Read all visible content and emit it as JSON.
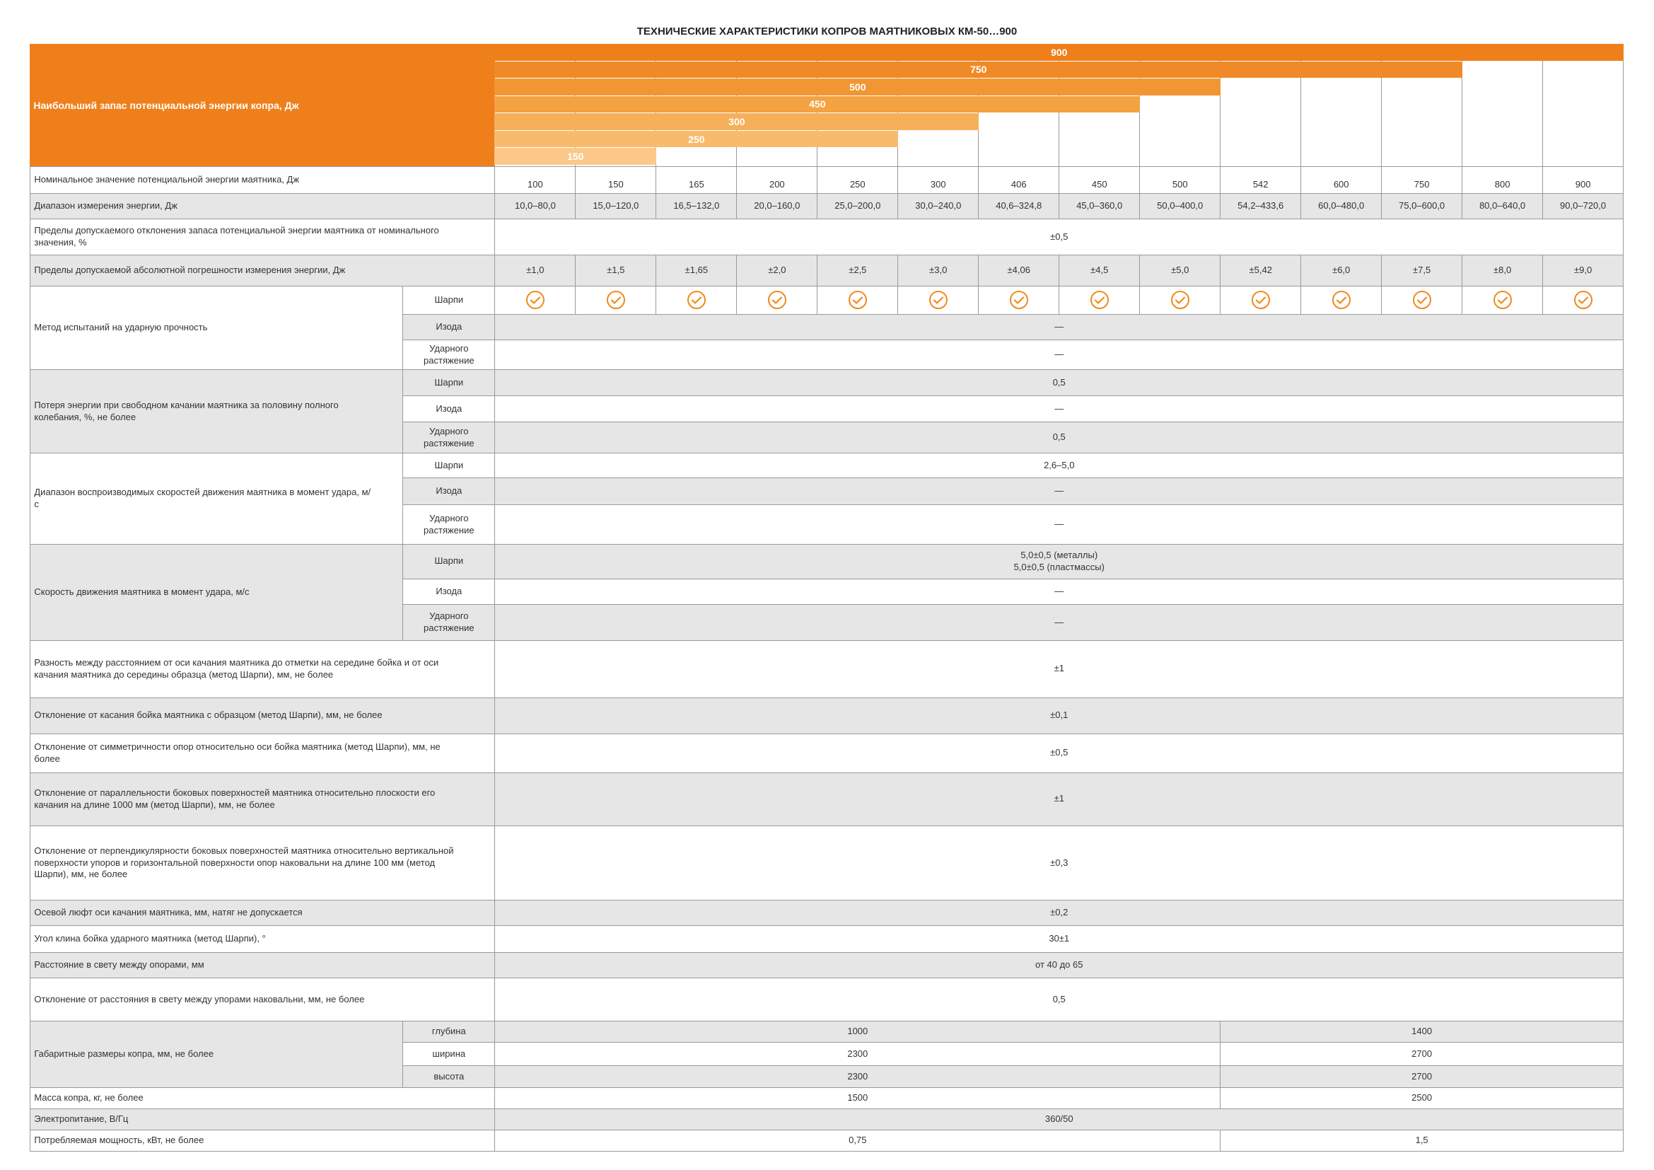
{
  "title": "ТЕХНИЧЕСКИЕ ХАРАКТЕРИСТИКИ КОПРОВ МАЯТНИКОВЫХ КМ-50…900",
  "header": {
    "label": "Наибольший запас потенциальной энергии копра, Дж",
    "bars": [
      "900",
      "750",
      "500",
      "450",
      "300",
      "250",
      "150"
    ]
  },
  "rows": [
    {
      "label": "Номинальное значение потенциальной энергии маятника, Дж",
      "values": [
        "100",
        "150",
        "165",
        "200",
        "250",
        "300",
        "406",
        "450",
        "500",
        "542",
        "600",
        "750",
        "800",
        "900"
      ]
    },
    {
      "label": "Диапазон измерения энергии, Дж",
      "values": [
        "10,0–80,0",
        "15,0–120,0",
        "16,5–132,0",
        "20,0–160,0",
        "25,0–200,0",
        "30,0–240,0",
        "40,6–324,8",
        "45,0–360,0",
        "50,0–400,0",
        "54,2–433,6",
        "60,0–480,0",
        "75,0–600,0",
        "80,0–640,0",
        "90,0–720,0"
      ]
    },
    {
      "label": "Пределы допускаемого отклонения запаса потенциальной энергии маятника от номинального значения, %",
      "value": "±0,5"
    },
    {
      "label": "Пределы допускаемой абсолютной погрешности измерения энергии, Дж",
      "values": [
        "±1,0",
        "±1,5",
        "±1,65",
        "±2,0",
        "±2,5",
        "±3,0",
        "±4,06",
        "±4,5",
        "±5,0",
        "±5,42",
        "±6,0",
        "±7,5",
        "±8,0",
        "±9,0"
      ]
    },
    {
      "label": "Метод испытаний на ударную прочность",
      "subs": [
        {
          "label": "Шарпи"
        },
        {
          "label": "Изода",
          "value": "—"
        },
        {
          "label": "Ударного растяжение",
          "value": "—"
        }
      ]
    },
    {
      "label": "Потеря энергии при свободном качании маятника за половину полного колебания, %, не более",
      "subs": [
        {
          "label": "Шарпи",
          "value": "0,5"
        },
        {
          "label": "Изода",
          "value": "—"
        },
        {
          "label": "Ударного растяжение",
          "value": "0,5"
        }
      ]
    },
    {
      "label": "Диапазон воспроизводимых скоростей движения маятника в момент удара, м/с",
      "subs": [
        {
          "label": "Шарпи",
          "value": "2,6–5,0"
        },
        {
          "label": "Изода",
          "value": "—"
        },
        {
          "label": "Ударного растяжение",
          "value": "—"
        }
      ]
    },
    {
      "label": "Скорость движения маятника в момент удара, м/с",
      "subs": [
        {
          "label": "Шарпи",
          "value": "5,0±0,5 (металлы)\n5,0±0,5 (пластмассы)"
        },
        {
          "label": "Изода",
          "value": "—"
        },
        {
          "label": "Ударного растяжение",
          "value": "—"
        }
      ]
    },
    {
      "label": "Разность между расстоянием от оси качания маятника до отметки на середине бойка и от оси качания маятника до середины образца (метод Шарпи), мм, не более",
      "value": "±1"
    },
    {
      "label": "Отклонение от касания бойка маятника с образцом (метод Шарпи), мм, не более",
      "value": "±0,1"
    },
    {
      "label": "Отклонение от симметричности опор относительно оси бойка маятника (метод Шарпи), мм, не более",
      "value": "±0,5"
    },
    {
      "label": "Отклонение от параллельности боковых поверхностей маятника относительно плоскости его качания на длине 1000 мм (метод Шарпи), мм, не более",
      "value": "±1"
    },
    {
      "label": "Отклонение от перпендикулярности боковых поверхностей маятника относительно вертикальной поверхности упоров и горизонтальной поверхности опор наковальни на длине 100 мм (метод Шарпи), мм, не более",
      "value": "±0,3"
    },
    {
      "label": "Осевой люфт оси качания маятника, мм, натяг не допускается",
      "value": "±0,2"
    },
    {
      "label": "Угол клина бойка ударного маятника (метод Шарпи), °",
      "value": "30±1"
    },
    {
      "label": "Расстояние в свету между опорами, мм",
      "value": "от 40 до 65"
    },
    {
      "label": "Отклонение от расстояния в свету между упорами наковальни, мм, не более",
      "value": "0,5"
    },
    {
      "label": "Габаритные размеры копра, мм, не более",
      "subs": [
        {
          "label": "глубина",
          "values": [
            "1000",
            "1400"
          ]
        },
        {
          "label": "ширина",
          "values": [
            "2300",
            "2700"
          ]
        },
        {
          "label": "высота",
          "values": [
            "2300",
            "2700"
          ]
        }
      ]
    },
    {
      "label": "Масса копра, кг, не более",
      "values": [
        "1500",
        "2500"
      ]
    },
    {
      "label": "Электропитание, В/Гц",
      "value": "360/50"
    },
    {
      "label": "Потребляемая мощность, кВт, не более",
      "values": [
        "0,75",
        "1,5"
      ]
    }
  ]
}
